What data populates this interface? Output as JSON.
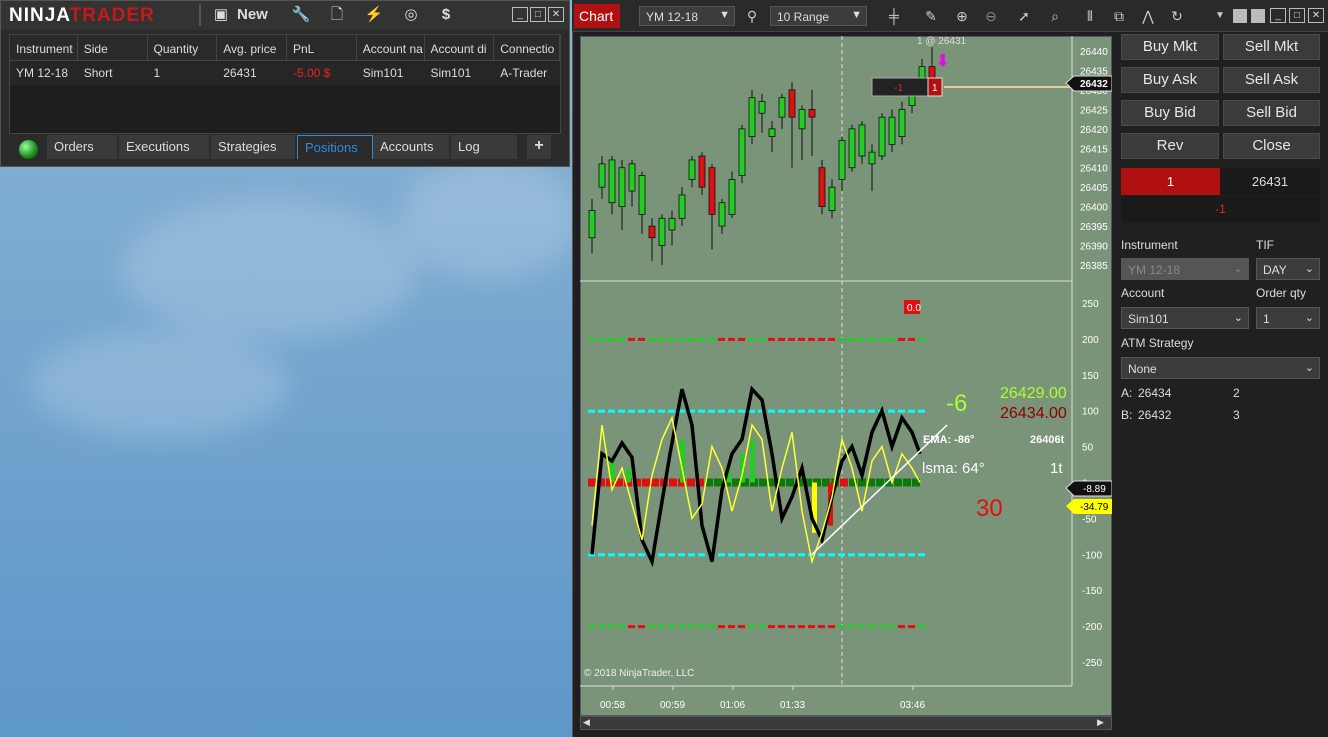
{
  "control_center": {
    "logo_ninja": "NINJA",
    "logo_trader": "TRADER",
    "new_label": "New",
    "columns": [
      "Instrument",
      "Side",
      "Quantity",
      "Avg. price",
      "PnL",
      "Account na",
      "Account di",
      "Connectio"
    ],
    "rows": [
      [
        "YM 12-18",
        "Short",
        "1",
        "26431",
        "-5.00 $",
        "Sim101",
        "Sim101",
        "A-Trader"
      ]
    ],
    "tabs": [
      "Orders",
      "Executions",
      "Strategies",
      "Positions",
      "Accounts",
      "Log"
    ],
    "active_tab": "Positions",
    "add_tab": "+"
  },
  "chart": {
    "tab_label": "Chart",
    "instrument": "YM 12-18",
    "bar_type": "10 Range",
    "top_annotation": "1 @ 26431",
    "position_pnl": "-1",
    "position_qty": "1",
    "last_price_tag": "26432",
    "price_ticks": [
      "26440",
      "26435",
      "26430",
      "26425",
      "26420",
      "26415",
      "26410",
      "26405",
      "26400",
      "26395",
      "26390",
      "26385"
    ],
    "osc_ticks": [
      "250",
      "200",
      "150",
      "100",
      "50",
      "0",
      "-50",
      "-100",
      "-150",
      "-200",
      "-250"
    ],
    "time_ticks": [
      "00:58",
      "00:59",
      "01:06",
      "01:33",
      "03:46"
    ],
    "indicator_small": "0.0",
    "val_green": "-6",
    "price_green": "26429.00",
    "price_red": "26434.00",
    "ema_text": "EMA: -86°",
    "ema_price": "26406t",
    "lsma_text": "lsma: 64°",
    "lsma_tick": "1t",
    "big_red": "30",
    "tag_black": "-8.89",
    "tag_yellow": "-34.79",
    "copyright": "© 2018 NinjaTrader, LLC"
  },
  "order_panel": {
    "buttons": [
      "Buy Mkt",
      "Sell Mkt",
      "Buy Ask",
      "Sell Ask",
      "Buy Bid",
      "Sell Bid",
      "Rev",
      "Close"
    ],
    "pos_qty": "1",
    "pos_price": "26431",
    "pos_pnl": "-1",
    "instrument_label": "Instrument",
    "instrument_value": "YM 12-18",
    "tif_label": "TIF",
    "tif_value": "DAY",
    "account_label": "Account",
    "account_value": "Sim101",
    "order_qty_label": "Order qty",
    "order_qty_value": "1",
    "atm_label": "ATM Strategy",
    "atm_value": "None",
    "ask_label": "A:",
    "ask_price": "26434",
    "ask_size": "2",
    "bid_label": "B:",
    "bid_price": "26432",
    "bid_size": "3"
  },
  "colors": {
    "accent_red": "#b01010",
    "chart_bg": "#7a9479",
    "tab_active": "#2e8bd8"
  }
}
